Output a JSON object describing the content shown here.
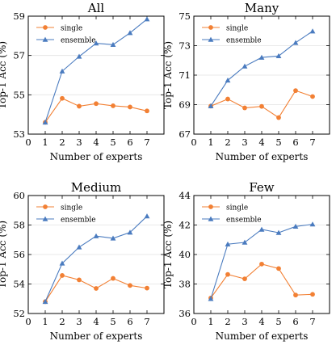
{
  "chart_data": [
    {
      "type": "line",
      "title": "All",
      "xlabel": "Number of experts",
      "ylabel": "Top-1 Acc (%)",
      "xlim": [
        0,
        8
      ],
      "ylim": [
        53,
        59
      ],
      "xticks": [
        0,
        1,
        2,
        3,
        4,
        5,
        6,
        7
      ],
      "yticks": [
        53,
        55,
        57,
        59
      ],
      "x": [
        1,
        2,
        3,
        4,
        5,
        6,
        7
      ],
      "grid": true,
      "legend_position": "upper-left",
      "series": [
        {
          "name": "single",
          "color": "#f28034",
          "marker": "circle",
          "values": [
            53.6,
            54.82,
            54.42,
            54.55,
            54.44,
            54.38,
            54.18
          ]
        },
        {
          "name": "ensemble",
          "color": "#4a7bbf",
          "marker": "triangle",
          "values": [
            53.6,
            56.2,
            56.95,
            57.62,
            57.55,
            58.15,
            58.85
          ]
        }
      ]
    },
    {
      "type": "line",
      "title": "Many",
      "xlabel": "Number of experts",
      "ylabel": "Top-1 Acc (%)",
      "xlim": [
        0,
        8
      ],
      "ylim": [
        67,
        75
      ],
      "xticks": [
        0,
        1,
        2,
        3,
        4,
        5,
        6,
        7
      ],
      "yticks": [
        67,
        69,
        71,
        73,
        75
      ],
      "x": [
        1,
        2,
        3,
        4,
        5,
        6,
        7
      ],
      "grid": true,
      "legend_position": "upper-left",
      "series": [
        {
          "name": "single",
          "color": "#f28034",
          "marker": "circle",
          "values": [
            68.9,
            69.38,
            68.78,
            68.88,
            68.12,
            69.95,
            69.55
          ]
        },
        {
          "name": "ensemble",
          "color": "#4a7bbf",
          "marker": "triangle",
          "values": [
            68.9,
            70.65,
            71.6,
            72.2,
            72.3,
            73.2,
            73.98
          ]
        }
      ]
    },
    {
      "type": "line",
      "title": "Medium",
      "xlabel": "Number of experts",
      "ylabel": "Top-1 Acc (%)",
      "xlim": [
        0,
        8
      ],
      "ylim": [
        52,
        60
      ],
      "xticks": [
        0,
        1,
        2,
        3,
        4,
        5,
        6,
        7
      ],
      "yticks": [
        52,
        54,
        56,
        58,
        60
      ],
      "x": [
        1,
        2,
        3,
        4,
        5,
        6,
        7
      ],
      "grid": true,
      "legend_position": "upper-left",
      "series": [
        {
          "name": "single",
          "color": "#f28034",
          "marker": "circle",
          "values": [
            52.8,
            54.58,
            54.28,
            53.7,
            54.38,
            53.9,
            53.72
          ]
        },
        {
          "name": "ensemble",
          "color": "#4a7bbf",
          "marker": "triangle",
          "values": [
            52.8,
            55.4,
            56.5,
            57.25,
            57.1,
            57.5,
            58.6
          ]
        }
      ]
    },
    {
      "type": "line",
      "title": "Few",
      "xlabel": "Number of experts",
      "ylabel": "Top-1 Acc (%)",
      "xlim": [
        0,
        8
      ],
      "ylim": [
        36,
        44
      ],
      "xticks": [
        0,
        1,
        2,
        3,
        4,
        5,
        6,
        7
      ],
      "yticks": [
        36,
        38,
        40,
        42,
        44
      ],
      "x": [
        1,
        2,
        3,
        4,
        5,
        6,
        7
      ],
      "grid": true,
      "legend_position": "upper-left",
      "series": [
        {
          "name": "single",
          "color": "#f28034",
          "marker": "circle",
          "values": [
            37.05,
            38.65,
            38.35,
            39.35,
            39.05,
            37.25,
            37.3
          ]
        },
        {
          "name": "ensemble",
          "color": "#4a7bbf",
          "marker": "triangle",
          "values": [
            37.0,
            40.7,
            40.82,
            41.7,
            41.48,
            41.9,
            42.05
          ]
        }
      ]
    }
  ]
}
